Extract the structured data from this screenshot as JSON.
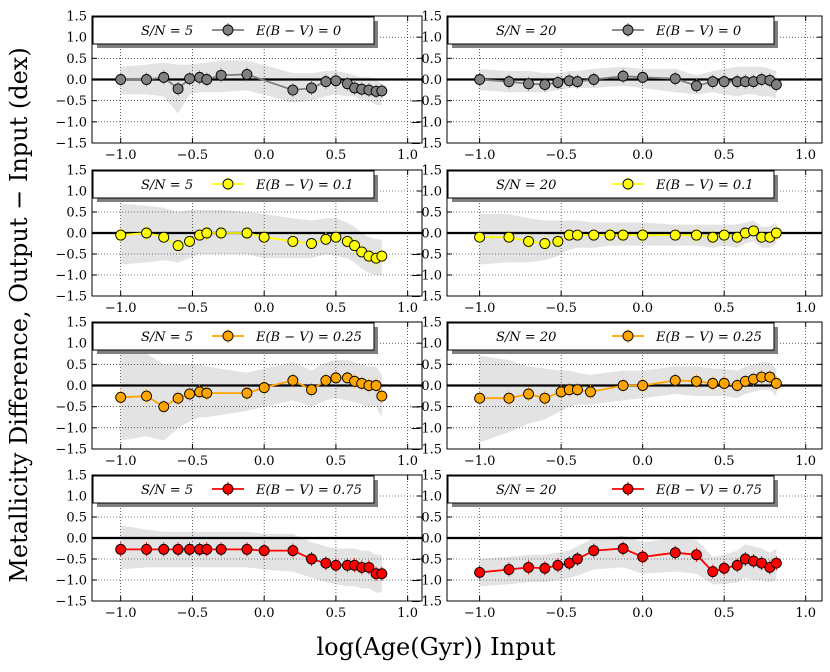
{
  "figure": {
    "ylabel": "Metallicity Difference, Output − Input (dex)",
    "xlabel": "log(Age(Gyr)) Input"
  },
  "chart_data": [
    {
      "type": "line",
      "panel": "row1-left",
      "sn_label": "S/N = 5",
      "legend": "E(B − V) = 0",
      "color": "#808080",
      "x": [
        -1.0,
        -0.82,
        -0.7,
        -0.6,
        -0.52,
        -0.45,
        -0.4,
        -0.3,
        -0.12,
        0.2,
        0.33,
        0.43,
        0.5,
        0.58,
        0.63,
        0.68,
        0.73,
        0.78,
        0.82
      ],
      "y": [
        0.0,
        0.0,
        0.05,
        -0.22,
        0.02,
        0.05,
        0.0,
        0.1,
        0.12,
        -0.25,
        -0.2,
        -0.05,
        -0.03,
        -0.1,
        -0.2,
        -0.23,
        -0.25,
        -0.28,
        -0.27
      ],
      "band_lower": [
        -0.35,
        -0.35,
        -0.4,
        -0.8,
        -0.35,
        -0.3,
        -0.3,
        -0.3,
        -0.25,
        -0.55,
        -0.5,
        -0.4,
        -0.35,
        -0.4,
        -0.4,
        -0.5,
        -0.5,
        -0.6,
        -0.6
      ],
      "band_upper": [
        0.3,
        0.35,
        0.4,
        0.35,
        0.35,
        0.38,
        0.4,
        0.45,
        0.45,
        0.15,
        0.15,
        0.2,
        0.2,
        0.15,
        0.1,
        0.05,
        0.05,
        0.0,
        -0.1
      ],
      "xlim": [
        -1.2,
        1.1
      ],
      "ylim": [
        -1.5,
        1.5
      ],
      "xticks": [
        "−1.0",
        "−0.5",
        "0.0",
        "0.5",
        "1.0"
      ],
      "yticks": [
        "1.5",
        "1.0",
        "0.5",
        "0.0",
        "−0.5",
        "−1.0",
        "−1.5"
      ]
    },
    {
      "type": "line",
      "panel": "row1-right",
      "sn_label": "S/N = 20",
      "legend": "E(B − V) = 0",
      "color": "#808080",
      "x": [
        -1.0,
        -0.82,
        -0.7,
        -0.6,
        -0.52,
        -0.45,
        -0.4,
        -0.3,
        -0.12,
        0.0,
        0.2,
        0.33,
        0.43,
        0.5,
        0.58,
        0.63,
        0.68,
        0.73,
        0.78,
        0.82
      ],
      "y": [
        0.0,
        -0.05,
        -0.1,
        -0.12,
        -0.07,
        -0.03,
        -0.05,
        0.0,
        0.08,
        0.05,
        0.02,
        -0.15,
        -0.05,
        -0.05,
        -0.05,
        -0.05,
        -0.05,
        0.0,
        -0.02,
        -0.12
      ],
      "band_lower": [
        -0.25,
        -0.3,
        -0.3,
        -0.3,
        -0.25,
        -0.2,
        -0.2,
        -0.2,
        -0.15,
        -0.2,
        -0.3,
        -0.35,
        -0.3,
        -0.35,
        -0.4,
        -0.35,
        -0.35,
        -0.4,
        -0.4,
        -0.45
      ],
      "band_upper": [
        0.25,
        0.2,
        0.2,
        0.15,
        0.15,
        0.2,
        0.2,
        0.25,
        0.3,
        0.25,
        0.25,
        0.1,
        0.2,
        0.25,
        0.3,
        0.3,
        0.3,
        0.3,
        0.25,
        0.2
      ],
      "xlim": [
        -1.2,
        1.1
      ],
      "ylim": [
        -1.5,
        1.5
      ],
      "xticks": [
        "−1.0",
        "−0.5",
        "0.0",
        "0.5",
        "1.0"
      ],
      "yticks": [
        "1.5",
        "1.0",
        "0.5",
        "0.0",
        "−0.5",
        "−1.0",
        "−1.5"
      ]
    },
    {
      "type": "line",
      "panel": "row2-left",
      "sn_label": "S/N = 5",
      "legend": "E(B − V) = 0.1",
      "color": "#ffff00",
      "x": [
        -1.0,
        -0.82,
        -0.7,
        -0.6,
        -0.52,
        -0.45,
        -0.4,
        -0.3,
        -0.12,
        0.0,
        0.2,
        0.33,
        0.43,
        0.5,
        0.58,
        0.63,
        0.68,
        0.73,
        0.78,
        0.82
      ],
      "y": [
        -0.05,
        0.0,
        -0.1,
        -0.3,
        -0.2,
        -0.05,
        0.0,
        0.0,
        0.0,
        -0.1,
        -0.2,
        -0.25,
        -0.15,
        -0.1,
        -0.2,
        -0.3,
        -0.45,
        -0.55,
        -0.6,
        -0.55
      ],
      "band_lower": [
        -0.75,
        -0.7,
        -0.65,
        -0.7,
        -0.6,
        -0.5,
        -0.5,
        -0.5,
        -0.5,
        -0.6,
        -0.6,
        -0.6,
        -0.5,
        -0.55,
        -0.6,
        -0.7,
        -0.85,
        -0.95,
        -1.0,
        -1.0
      ],
      "band_upper": [
        0.7,
        0.65,
        0.6,
        0.5,
        0.55,
        0.55,
        0.55,
        0.55,
        0.5,
        0.45,
        0.35,
        0.3,
        0.35,
        0.35,
        0.25,
        0.15,
        0.0,
        -0.1,
        -0.15,
        -0.15
      ],
      "xlim": [
        -1.2,
        1.1
      ],
      "ylim": [
        -1.5,
        1.5
      ],
      "xticks": [
        "−1.0",
        "−0.5",
        "0.0",
        "0.5",
        "1.0"
      ],
      "yticks": [
        "1.5",
        "1.0",
        "0.5",
        "0.0",
        "−0.5",
        "−1.0",
        "−1.5"
      ]
    },
    {
      "type": "line",
      "panel": "row2-right",
      "sn_label": "S/N = 20",
      "legend": "E(B − V) = 0.1",
      "color": "#ffff00",
      "x": [
        -1.0,
        -0.82,
        -0.7,
        -0.6,
        -0.52,
        -0.45,
        -0.4,
        -0.3,
        -0.2,
        -0.12,
        0.0,
        0.2,
        0.33,
        0.43,
        0.5,
        0.58,
        0.63,
        0.68,
        0.73,
        0.78,
        0.82
      ],
      "y": [
        -0.1,
        -0.1,
        -0.2,
        -0.25,
        -0.2,
        -0.05,
        -0.05,
        -0.05,
        -0.05,
        -0.05,
        -0.05,
        -0.05,
        -0.05,
        -0.1,
        -0.05,
        -0.1,
        0.0,
        0.05,
        -0.1,
        -0.1,
        0.0
      ],
      "band_lower": [
        -0.75,
        -0.7,
        -0.7,
        -0.65,
        -0.55,
        -0.4,
        -0.35,
        -0.35,
        -0.3,
        -0.3,
        -0.3,
        -0.3,
        -0.3,
        -0.35,
        -0.3,
        -0.35,
        -0.25,
        -0.2,
        -0.35,
        -0.35,
        -0.25
      ],
      "band_upper": [
        0.45,
        0.45,
        0.35,
        0.3,
        0.3,
        0.3,
        0.3,
        0.25,
        0.25,
        0.25,
        0.25,
        0.2,
        0.2,
        0.2,
        0.2,
        0.2,
        0.25,
        0.3,
        0.15,
        0.15,
        0.25
      ],
      "xlim": [
        -1.2,
        1.1
      ],
      "ylim": [
        -1.5,
        1.5
      ],
      "xticks": [
        "−1.0",
        "−0.5",
        "0.0",
        "0.5",
        "1.0"
      ],
      "yticks": [
        "1.5",
        "1.0",
        "0.5",
        "0.0",
        "−0.5",
        "−1.0",
        "−1.5"
      ]
    },
    {
      "type": "line",
      "panel": "row3-left",
      "sn_label": "S/N = 5",
      "legend": "E(B − V) = 0.25",
      "color": "#ffa500",
      "x": [
        -1.0,
        -0.82,
        -0.7,
        -0.6,
        -0.52,
        -0.45,
        -0.4,
        -0.12,
        0.0,
        0.2,
        0.33,
        0.43,
        0.5,
        0.58,
        0.63,
        0.68,
        0.73,
        0.78,
        0.82
      ],
      "y": [
        -0.28,
        -0.25,
        -0.5,
        -0.3,
        -0.2,
        -0.15,
        -0.18,
        -0.18,
        -0.05,
        0.12,
        -0.1,
        0.12,
        0.18,
        0.18,
        0.1,
        0.05,
        0.0,
        0.0,
        -0.25
      ],
      "band_lower": [
        -1.3,
        -1.2,
        -1.3,
        -1.0,
        -0.85,
        -0.75,
        -0.75,
        -0.6,
        -0.5,
        -0.35,
        -0.5,
        -0.35,
        -0.3,
        -0.35,
        -0.4,
        -0.45,
        -0.5,
        -0.5,
        -0.75
      ],
      "band_upper": [
        0.8,
        0.75,
        0.5,
        0.5,
        0.5,
        0.5,
        0.45,
        0.3,
        0.4,
        0.55,
        0.35,
        0.55,
        0.6,
        0.6,
        0.55,
        0.5,
        0.45,
        0.45,
        0.25
      ],
      "xlim": [
        -1.2,
        1.1
      ],
      "ylim": [
        -1.5,
        1.5
      ],
      "xticks": [
        "−1.0",
        "−0.5",
        "0.0",
        "0.5",
        "1.0"
      ],
      "yticks": [
        "1.5",
        "1.0",
        "0.5",
        "0.0",
        "−0.5",
        "−1.0",
        "−1.5"
      ]
    },
    {
      "type": "line",
      "panel": "row3-right",
      "sn_label": "S/N = 20",
      "legend": "E(B − V) = 0.25",
      "color": "#ffa500",
      "x": [
        -1.0,
        -0.82,
        -0.7,
        -0.6,
        -0.5,
        -0.45,
        -0.4,
        -0.32,
        -0.12,
        0.0,
        0.2,
        0.33,
        0.43,
        0.5,
        0.58,
        0.63,
        0.68,
        0.73,
        0.78,
        0.82
      ],
      "y": [
        -0.3,
        -0.3,
        -0.2,
        -0.3,
        -0.15,
        -0.1,
        -0.1,
        -0.15,
        0.0,
        0.0,
        0.12,
        0.1,
        0.05,
        0.05,
        0.0,
        0.1,
        0.15,
        0.2,
        0.2,
        0.05
      ],
      "band_lower": [
        -1.35,
        -1.1,
        -0.9,
        -0.8,
        -0.6,
        -0.5,
        -0.45,
        -0.45,
        -0.35,
        -0.3,
        -0.2,
        -0.25,
        -0.25,
        -0.25,
        -0.3,
        -0.2,
        -0.15,
        -0.1,
        -0.1,
        -0.25
      ],
      "band_upper": [
        0.7,
        0.6,
        0.45,
        0.4,
        0.35,
        0.35,
        0.3,
        0.25,
        0.35,
        0.35,
        0.45,
        0.45,
        0.4,
        0.4,
        0.35,
        0.45,
        0.5,
        0.55,
        0.55,
        0.4
      ],
      "xlim": [
        -1.2,
        1.1
      ],
      "ylim": [
        -1.5,
        1.5
      ],
      "xticks": [
        "−1.0",
        "−0.5",
        "0.0",
        "0.5",
        "1.0"
      ],
      "yticks": [
        "1.5",
        "1.0",
        "0.5",
        "0.0",
        "−0.5",
        "−1.0",
        "−1.5"
      ]
    },
    {
      "type": "line",
      "panel": "row4-left",
      "sn_label": "S/N = 5",
      "legend": "E(B − V) = 0.75",
      "color": "#ff0000",
      "x": [
        -1.0,
        -0.82,
        -0.7,
        -0.6,
        -0.52,
        -0.45,
        -0.4,
        -0.3,
        -0.12,
        0.0,
        0.2,
        0.33,
        0.43,
        0.5,
        0.58,
        0.63,
        0.68,
        0.73,
        0.78,
        0.82
      ],
      "y": [
        -0.27,
        -0.27,
        -0.27,
        -0.27,
        -0.27,
        -0.27,
        -0.27,
        -0.27,
        -0.27,
        -0.3,
        -0.3,
        -0.5,
        -0.6,
        -0.65,
        -0.65,
        -0.65,
        -0.7,
        -0.7,
        -0.85,
        -0.85
      ],
      "band_lower": [
        -0.75,
        -0.7,
        -0.7,
        -0.7,
        -0.7,
        -0.7,
        -0.7,
        -0.7,
        -0.7,
        -0.75,
        -0.8,
        -0.95,
        -1.05,
        -1.1,
        -1.15,
        -1.15,
        -1.2,
        -1.2,
        -1.3,
        -1.3
      ],
      "band_upper": [
        0.3,
        0.2,
        0.15,
        0.15,
        0.15,
        0.15,
        0.15,
        0.15,
        0.15,
        0.1,
        0.1,
        -0.1,
        -0.2,
        -0.25,
        -0.25,
        -0.25,
        -0.3,
        -0.3,
        -0.4,
        -0.4
      ],
      "xlim": [
        -1.2,
        1.1
      ],
      "ylim": [
        -1.5,
        1.5
      ],
      "xticks": [
        "−1.0",
        "−0.5",
        "0.0",
        "0.5",
        "1.0"
      ],
      "yticks": [
        "1.5",
        "1.0",
        "0.5",
        "0.0",
        "−0.5",
        "−1.0",
        "−1.5"
      ]
    },
    {
      "type": "line",
      "panel": "row4-right",
      "sn_label": "S/N = 20",
      "legend": "E(B − V) = 0.75",
      "color": "#ff0000",
      "x": [
        -1.0,
        -0.82,
        -0.7,
        -0.6,
        -0.52,
        -0.45,
        -0.4,
        -0.3,
        -0.12,
        0.0,
        0.2,
        0.33,
        0.43,
        0.5,
        0.58,
        0.63,
        0.68,
        0.73,
        0.78,
        0.82
      ],
      "y": [
        -0.82,
        -0.75,
        -0.7,
        -0.72,
        -0.65,
        -0.6,
        -0.5,
        -0.3,
        -0.25,
        -0.45,
        -0.35,
        -0.4,
        -0.8,
        -0.72,
        -0.65,
        -0.5,
        -0.55,
        -0.6,
        -0.7,
        -0.6
      ],
      "band_lower": [
        -1.15,
        -1.1,
        -1.05,
        -1.05,
        -1.0,
        -0.95,
        -0.9,
        -0.75,
        -0.7,
        -0.85,
        -0.8,
        -0.85,
        -1.1,
        -1.1,
        -1.05,
        -0.95,
        -1.0,
        -1.0,
        -1.05,
        -1.0
      ],
      "band_upper": [
        -0.5,
        -0.45,
        -0.4,
        -0.4,
        -0.35,
        -0.3,
        -0.2,
        0.0,
        0.05,
        -0.1,
        0.0,
        -0.05,
        -0.45,
        -0.4,
        -0.3,
        -0.15,
        -0.2,
        -0.25,
        -0.35,
        -0.25
      ],
      "xlim": [
        -1.2,
        1.1
      ],
      "ylim": [
        -1.5,
        1.5
      ],
      "xticks": [
        "−1.0",
        "−0.5",
        "0.0",
        "0.5",
        "1.0"
      ],
      "yticks": [
        "1.5",
        "1.0",
        "0.5",
        "0.0",
        "−0.5",
        "−1.0",
        "−1.5"
      ]
    }
  ]
}
